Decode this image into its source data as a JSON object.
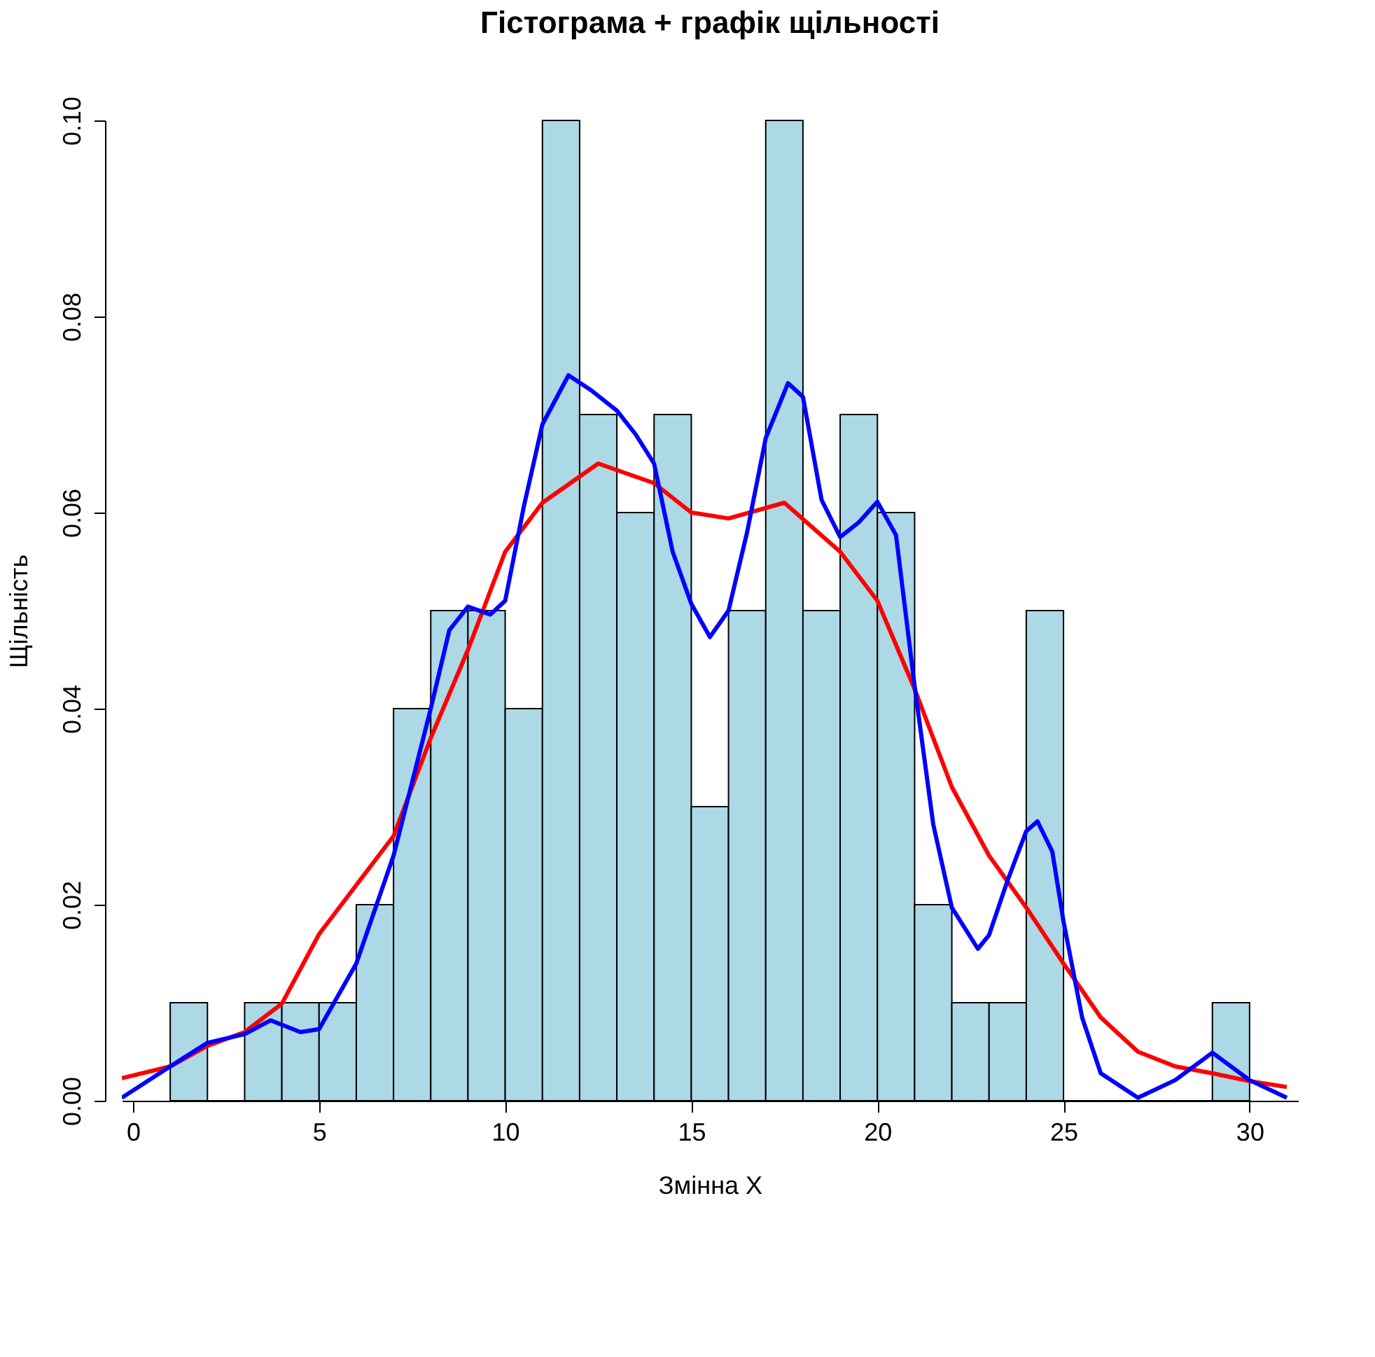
{
  "chart_data": {
    "type": "histogram",
    "title": "Гістограма + графік щільності",
    "xlabel": "Змінна X",
    "ylabel": "Щільність",
    "bins": [
      1,
      2,
      3,
      4,
      5,
      6,
      7,
      8,
      9,
      10,
      11,
      12,
      13,
      14,
      15,
      16,
      17,
      18,
      19,
      20,
      21,
      22,
      23,
      24,
      25,
      26,
      27,
      28,
      29,
      30
    ],
    "values": [
      0.01,
      0,
      0.01,
      0.01,
      0.01,
      0.02,
      0.04,
      0.05,
      0.05,
      0.04,
      0.1,
      0.07,
      0.06,
      0.07,
      0.03,
      0.05,
      0.1,
      0.05,
      0.07,
      0.06,
      0.02,
      0.01,
      0.01,
      0.05,
      0,
      0,
      0,
      0,
      0.01
    ],
    "color": "#add8e6",
    "series": [
      {
        "type": "line",
        "color": "#ff0000",
        "x": [
          -0.3,
          1,
          2,
          3,
          4,
          5,
          7,
          8,
          9,
          10,
          11,
          12.5,
          14,
          15,
          16,
          17.5,
          19,
          20,
          21,
          22,
          23,
          24,
          25,
          26,
          27,
          28,
          29,
          30,
          31
        ],
        "values": [
          0.0023,
          0.0035,
          0.0056,
          0.007,
          0.0099,
          0.017,
          0.027,
          0.037,
          0.046,
          0.056,
          0.061,
          0.065,
          0.063,
          0.06,
          0.0594,
          0.061,
          0.056,
          0.051,
          0.042,
          0.032,
          0.025,
          0.0197,
          0.014,
          0.0085,
          0.005,
          0.0035,
          0.0028,
          0.002,
          0.0014
        ]
      },
      {
        "type": "line",
        "color": "#0000ff",
        "x": [
          -0.3,
          1,
          2,
          3,
          3.7,
          4.5,
          5,
          6,
          7,
          8,
          8.5,
          9,
          9.6,
          10,
          10.5,
          11,
          11.7,
          12.3,
          13,
          13.5,
          14,
          14.5,
          15,
          15.5,
          16,
          16.5,
          17,
          17.6,
          18,
          18.5,
          19,
          19.5,
          20,
          20.5,
          21,
          21.5,
          22,
          22.7,
          23,
          23.5,
          24,
          24.3,
          24.7,
          25,
          25.5,
          26,
          27,
          28,
          29,
          30,
          31
        ],
        "values": [
          0.0003,
          0.0035,
          0.0059,
          0.0068,
          0.0082,
          0.007,
          0.0073,
          0.014,
          0.025,
          0.04,
          0.048,
          0.0504,
          0.0496,
          0.051,
          0.0606,
          0.069,
          0.074,
          0.0725,
          0.0704,
          0.068,
          0.065,
          0.056,
          0.0507,
          0.0473,
          0.05,
          0.058,
          0.0676,
          0.0732,
          0.0718,
          0.0613,
          0.0575,
          0.059,
          0.0611,
          0.0577,
          0.0423,
          0.0282,
          0.0197,
          0.0155,
          0.0169,
          0.0225,
          0.0275,
          0.0285,
          0.0254,
          0.0183,
          0.0085,
          0.0028,
          0.0003,
          0.0021,
          0.0049,
          0.0021,
          0.0003
        ]
      }
    ],
    "xlim": [
      -0.3,
      31.3
    ],
    "xticks": [
      0,
      5,
      10,
      15,
      20,
      25,
      30
    ],
    "ylim": [
      0,
      0.1
    ],
    "yticks": [
      {
        "value": 0,
        "label": "0.00"
      },
      {
        "value": 0.02,
        "label": "0.02"
      },
      {
        "value": 0.04,
        "label": "0.04"
      },
      {
        "value": 0.06,
        "label": "0.06"
      },
      {
        "value": 0.08,
        "label": "0.08"
      },
      {
        "value": 0.1,
        "label": "0.10"
      }
    ],
    "grid": false
  }
}
